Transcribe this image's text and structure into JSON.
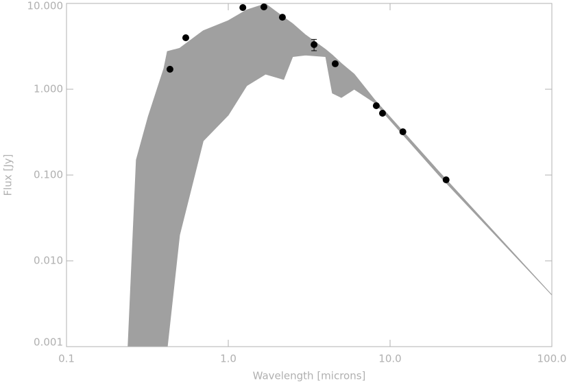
{
  "chart_data": {
    "type": "scatter",
    "xlabel": "Wavelength [microns]",
    "ylabel": "Flux [Jy]",
    "xlog": true,
    "ylog": true,
    "xlim": [
      0.1,
      100
    ],
    "ylim": [
      0.001,
      10
    ],
    "xticks": [
      0.1,
      {
        "value": 1,
        "label": "1.0"
      },
      {
        "value": 10,
        "label": "10.0"
      },
      {
        "value": 100,
        "label": "100.0"
      }
    ],
    "yticks": [
      0.001,
      {
        "value": 0.01,
        "label": "0.010"
      },
      {
        "value": 0.1,
        "label": "0.100"
      },
      {
        "value": 1,
        "label": "1.000"
      },
      {
        "value": 10,
        "label": "10.000"
      }
    ],
    "axis_color": "#b0b0b0",
    "model": {
      "color": "#a0a0a0",
      "x": [
        0.24,
        0.27,
        0.32,
        0.4,
        0.42,
        0.5,
        0.7,
        1.0,
        1.3,
        1.7,
        2.2,
        2.5,
        3.0,
        4.0,
        4.4,
        5.0,
        6.0,
        8.0,
        20,
        100
      ],
      "upper": [
        0.001,
        0.15,
        0.48,
        1.75,
        2.75,
        3.0,
        4.8,
        6.3,
        8.4,
        9.9,
        6.9,
        5.8,
        4.3,
        2.9,
        2.5,
        2.0,
        1.5,
        0.76,
        0.11,
        0.004
      ],
      "lower": [
        0.001,
        0.001,
        0.001,
        0.001,
        0.001,
        0.02,
        0.25,
        0.5,
        1.1,
        1.5,
        1.3,
        2.4,
        2.5,
        2.4,
        0.9,
        0.8,
        1.0,
        0.7,
        0.1,
        0.004
      ]
    },
    "series": [
      {
        "color": "#000000",
        "x": [
          0.436,
          0.546,
          1.23,
          1.66,
          2.16,
          3.39,
          4.58,
          8.22,
          8.98,
          12.0,
          22.2
        ],
        "values": [
          1.71,
          3.98,
          8.95,
          9.1,
          6.9,
          3.31,
          1.98,
          0.643,
          0.525,
          0.319,
          0.0879
        ],
        "errors": [
          null,
          null,
          null,
          null,
          null,
          0.5,
          null,
          null,
          null,
          null,
          null
        ]
      }
    ]
  }
}
